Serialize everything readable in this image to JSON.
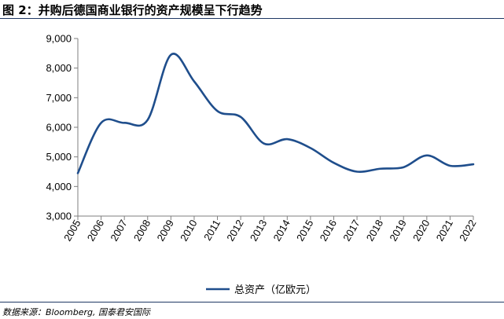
{
  "title": "图 2：并购后德国商业银行的资产规模呈下行趋势",
  "source": "数据来源：Bloomberg, 国泰君安国际",
  "colors": {
    "series": "#1f4e8c",
    "axis": "#7f7f7f",
    "rule": "#1f3864"
  },
  "chart_data": {
    "type": "line",
    "title": "",
    "xlabel": "",
    "ylabel": "",
    "categories": [
      "2005",
      "2006",
      "2007",
      "2008",
      "2009",
      "2010",
      "2011",
      "2012",
      "2013",
      "2014",
      "2015",
      "2016",
      "2017",
      "2018",
      "2019",
      "2020",
      "2021",
      "2022"
    ],
    "ylim": [
      3000,
      9000
    ],
    "yticks": [
      3000,
      4000,
      5000,
      6000,
      7000,
      8000,
      9000
    ],
    "ytick_labels": [
      "3,000",
      "4,000",
      "5,000",
      "6,000",
      "7,000",
      "8,000",
      "9,000"
    ],
    "series": [
      {
        "name": "总资产（亿欧元）",
        "values": [
          4450,
          6150,
          6150,
          6250,
          8450,
          7550,
          6550,
          6350,
          5450,
          5600,
          5300,
          4800,
          4500,
          4600,
          4650,
          5050,
          4700,
          4750
        ]
      }
    ],
    "legend_position": "bottom-center",
    "grid": false
  }
}
